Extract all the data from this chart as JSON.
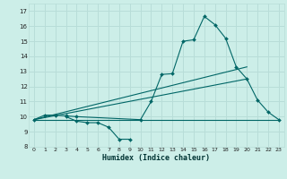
{
  "xlabel": "Humidex (Indice chaleur)",
  "bg_color": "#cceee8",
  "grid_color": "#b8ddd8",
  "line_color": "#006666",
  "xlim": [
    -0.5,
    23.5
  ],
  "ylim": [
    8.0,
    17.5
  ],
  "xticks": [
    0,
    1,
    2,
    3,
    4,
    5,
    6,
    7,
    8,
    9,
    10,
    11,
    12,
    13,
    14,
    15,
    16,
    17,
    18,
    19,
    20,
    21,
    22,
    23
  ],
  "yticks": [
    8,
    9,
    10,
    11,
    12,
    13,
    14,
    15,
    16,
    17
  ],
  "line1_x": [
    0,
    1,
    2,
    3,
    4,
    10,
    11,
    12,
    13,
    14,
    15,
    16,
    17,
    18,
    19,
    20,
    21,
    22,
    23
  ],
  "line1_y": [
    9.8,
    10.1,
    10.1,
    10.05,
    10.0,
    9.8,
    11.0,
    12.8,
    12.85,
    15.0,
    15.1,
    16.65,
    16.1,
    15.2,
    13.3,
    12.5,
    11.1,
    10.3,
    9.8
  ],
  "line2_x": [
    3,
    4,
    5,
    6,
    7,
    8,
    9
  ],
  "line2_y": [
    10.0,
    9.7,
    9.6,
    9.6,
    9.3,
    8.5,
    8.5
  ],
  "line3_x": [
    0,
    23
  ],
  "line3_y": [
    9.8,
    9.8
  ],
  "line4_x": [
    0,
    20
  ],
  "line4_y": [
    9.8,
    12.5
  ],
  "line5_x": [
    0,
    20
  ],
  "line5_y": [
    9.8,
    13.3
  ]
}
